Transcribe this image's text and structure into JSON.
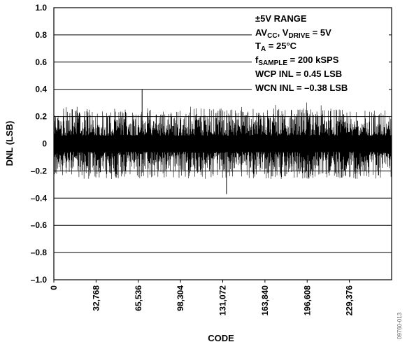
{
  "chart_data": {
    "type": "line",
    "xlabel": "CODE",
    "ylabel": "DNL (LSB)",
    "xlim": [
      0,
      262143
    ],
    "ylim": [
      -1.0,
      1.0
    ],
    "x_ticks": [
      0,
      32768,
      65536,
      98304,
      131072,
      163840,
      196608,
      229376
    ],
    "x_tick_labels": [
      "0",
      "32,768",
      "65,536",
      "98,304",
      "131,072",
      "163,840",
      "196,608",
      "229,376"
    ],
    "y_ticks": [
      -1.0,
      -0.8,
      -0.6,
      -0.4,
      -0.2,
      0,
      0.2,
      0.4,
      0.6,
      0.8,
      1.0
    ],
    "y_tick_labels": [
      "–1.0",
      "–0.8",
      "–0.6",
      "–0.4",
      "–0.2",
      "0",
      "0.2",
      "0.4",
      "0.6",
      "0.8",
      "1.0"
    ],
    "grid": true,
    "series": [
      {
        "color": "#000000",
        "description_of_shape": "dense noise band centred on 0",
        "envelope": {
          "typical_max": 0.2,
          "typical_min": -0.2,
          "peak_max": 0.4,
          "peak_min": -0.37
        },
        "peak_max_code": 68500,
        "peak_min_code": 134000
      }
    ],
    "annotations": {
      "range": "±5V RANGE",
      "supply": {
        "av": "AV",
        "av_sub": "CC",
        "mid": ", V",
        "v_sub": "DRIVE",
        "tail": " = 5V"
      },
      "temp": {
        "t": "T",
        "t_sub": "A",
        "tail": " = 25°C"
      },
      "sample": {
        "f": "f",
        "f_sub": "SAMPLE",
        "tail": " = 200 kSPS"
      },
      "wcp": "WCP INL = 0.45 LSB",
      "wcn": "WCN INL = –0.38 LSB"
    }
  },
  "figure_id": "09760-013"
}
